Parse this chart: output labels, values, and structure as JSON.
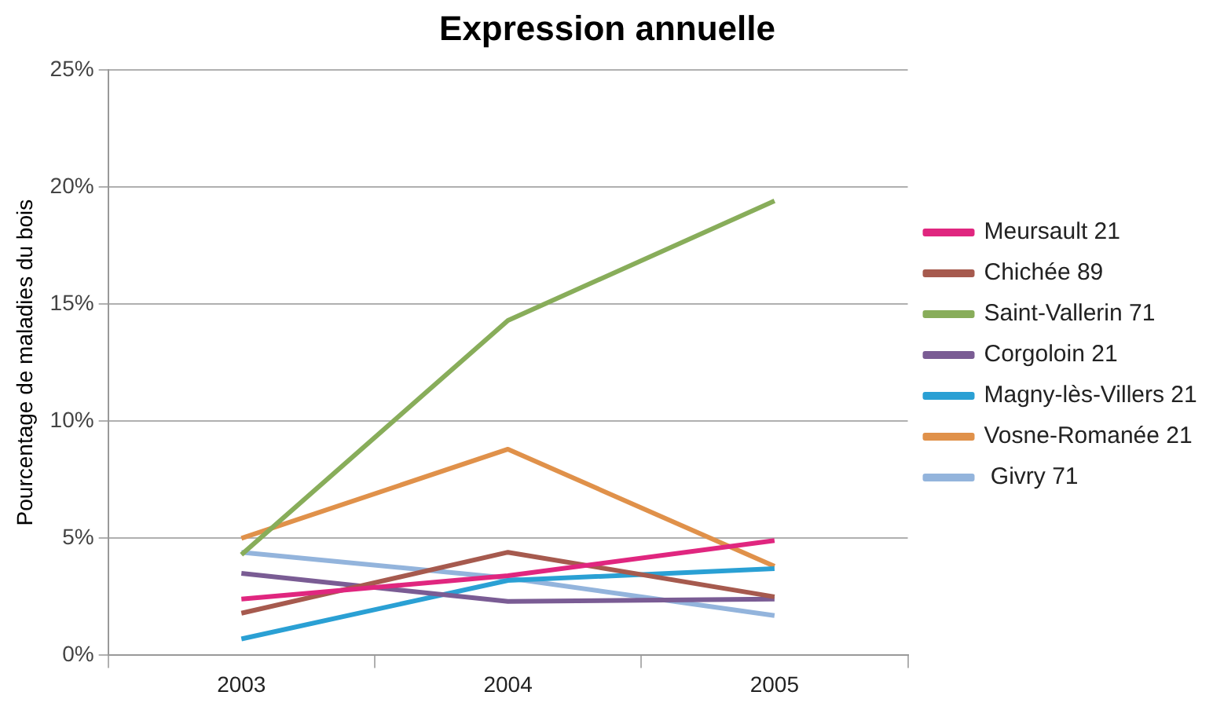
{
  "chart_data": {
    "type": "line",
    "title": "Expression annuelle",
    "ylabel": "Pourcentage de maladies du bois",
    "categories": [
      "2003",
      "2004",
      "2005"
    ],
    "series": [
      {
        "name": "Meursault 21",
        "color": "#e0267f",
        "values": [
          2.4,
          3.4,
          4.9
        ]
      },
      {
        "name": "Chichée 89",
        "color": "#a65a4e",
        "values": [
          1.8,
          4.4,
          2.5
        ]
      },
      {
        "name": "Saint-Vallerin 71",
        "color": "#88ad5a",
        "values": [
          4.3,
          14.3,
          19.4
        ]
      },
      {
        "name": "Corgoloin 21",
        "color": "#7a5c94",
        "values": [
          3.5,
          2.3,
          2.4
        ]
      },
      {
        "name": "Magny-lès-Villers 21",
        "color": "#2aa0d4",
        "values": [
          0.7,
          3.2,
          3.7
        ]
      },
      {
        "name": "Vosne-Romanée 21",
        "color": "#e0914a",
        "values": [
          5.0,
          8.8,
          3.8
        ]
      },
      {
        "name": " Givry 71",
        "color": "#93b4dc",
        "values": [
          4.4,
          3.3,
          1.7
        ]
      }
    ],
    "ylim": [
      0,
      25
    ],
    "yticks": [
      {
        "value": 0,
        "label": "0%"
      },
      {
        "value": 5,
        "label": "5%"
      },
      {
        "value": 10,
        "label": "10%"
      },
      {
        "value": 15,
        "label": "15%"
      },
      {
        "value": 20,
        "label": "20%"
      },
      {
        "value": 25,
        "label": "25%"
      }
    ],
    "grid": "y",
    "legend": "right",
    "marker": "none",
    "line_style": "solid"
  }
}
